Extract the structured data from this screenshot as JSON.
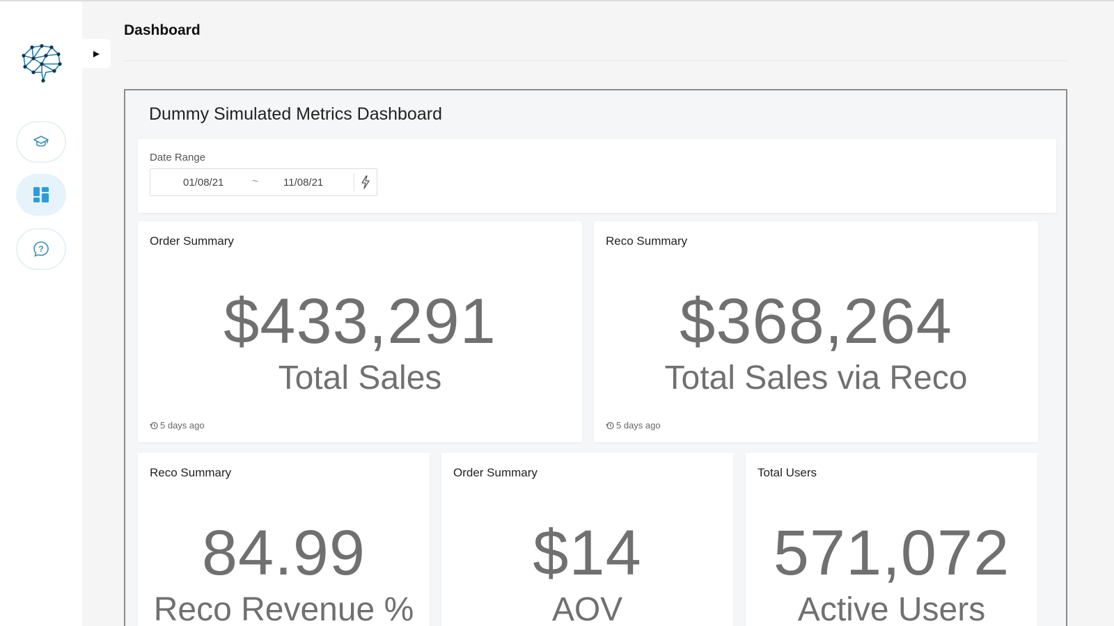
{
  "sidebar": {
    "logo": "brain-network-logo",
    "items": [
      {
        "name": "learn",
        "icon": "graduation-cap-icon",
        "active": false
      },
      {
        "name": "dashboard",
        "icon": "dashboard-grid-icon",
        "active": true
      },
      {
        "name": "help",
        "icon": "help-bubble-icon",
        "active": false
      }
    ],
    "toggle_icon": "play-arrow-icon"
  },
  "header": {
    "title": "Dashboard"
  },
  "dashboard": {
    "title": "Dummy Simulated Metrics Dashboard",
    "date_range": {
      "label": "Date Range",
      "start": "01/08/21",
      "separator": "~",
      "end": "11/08/21",
      "icon": "lightning-icon"
    },
    "cards": [
      {
        "title": "Order Summary",
        "value": "$433,291",
        "label": "Total Sales",
        "updated": "5 days ago"
      },
      {
        "title": "Reco Summary",
        "value": "$368,264",
        "label": "Total Sales via Reco",
        "updated": "5 days ago"
      },
      {
        "title": "Reco Summary",
        "value": "84.99",
        "label": "Reco Revenue %"
      },
      {
        "title": "Order Summary",
        "value": "$14",
        "label": "AOV"
      },
      {
        "title": "Total Users",
        "value": "571,072",
        "label": "Active Users"
      }
    ]
  },
  "colors": {
    "accent": "#2d9cdb",
    "logo": "#1f7fb0",
    "metric_text": "#707070"
  }
}
